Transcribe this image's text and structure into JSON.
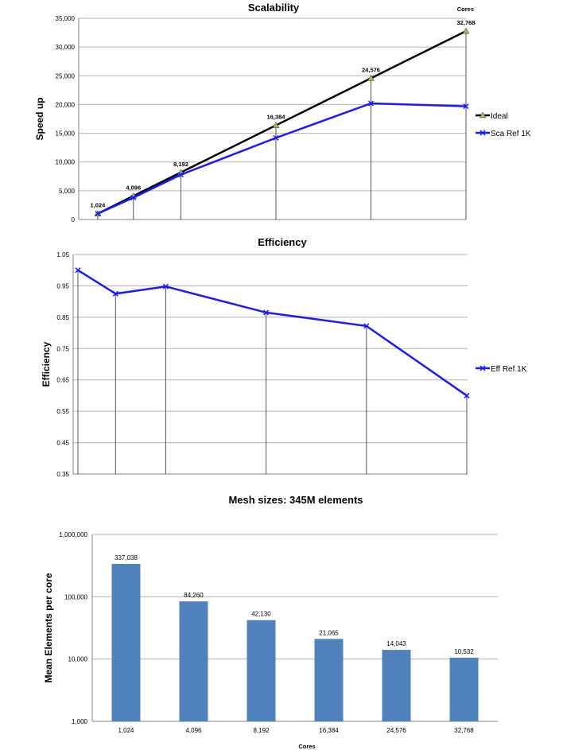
{
  "chart_data": [
    {
      "type": "line",
      "title": "Scalability",
      "ylabel": "Speed up",
      "x_corner_label": "Cores",
      "x": [
        1024,
        4096,
        8192,
        16384,
        24576,
        32768
      ],
      "ylim": [
        0,
        35000
      ],
      "yticks": [
        "0",
        "5,000",
        "10,000",
        "15,000",
        "20,000",
        "25,000",
        "30,000",
        "35,000"
      ],
      "point_labels": [
        "1,024",
        "4,096",
        "8,192",
        "16,384",
        "24,576",
        "32,768"
      ],
      "series": [
        {
          "name": "Ideal",
          "color": "#000000",
          "marker": "triangle",
          "values": [
            1024,
            4096,
            8192,
            16384,
            24576,
            32768
          ]
        },
        {
          "name": "Sca Ref 1K",
          "color": "#1a1aff",
          "marker": "x",
          "values": [
            1024,
            3800,
            7800,
            14200,
            20200,
            19700
          ]
        }
      ],
      "legend": "right",
      "grid": true
    },
    {
      "type": "line",
      "title": "Efficiency",
      "ylabel": "Efficiency",
      "x": [
        1024,
        4096,
        8192,
        16384,
        24576,
        32768
      ],
      "ylim": [
        0.35,
        1.05
      ],
      "yticks": [
        "0.35",
        "0.45",
        "0.55",
        "0.65",
        "0.75",
        "0.85",
        "0.95",
        "1.05"
      ],
      "series": [
        {
          "name": "Eff Ref 1K",
          "color": "#1a1aff",
          "marker": "x",
          "values": [
            1.0,
            0.925,
            0.948,
            0.865,
            0.822,
            0.6
          ]
        }
      ],
      "legend": "right",
      "grid": true
    },
    {
      "type": "bar",
      "title": "Mesh sizes: 345M elements",
      "xlabel": "Cores",
      "ylabel": "Mean Elements per core",
      "yscale": "log",
      "ylim": [
        1000,
        1000000
      ],
      "yticks": [
        "1,000",
        "10,000",
        "100,000",
        "1,000,000"
      ],
      "categories": [
        "1,024",
        "4,096",
        "8,192",
        "16,384",
        "24,576",
        "32,768"
      ],
      "values": [
        337038,
        84260,
        42130,
        21065,
        14043,
        10532
      ],
      "value_labels": [
        "337,038",
        "84,260",
        "42,130",
        "21,065",
        "14,043",
        "10,532"
      ],
      "bar_color": "#4f81bd",
      "grid": true
    }
  ]
}
